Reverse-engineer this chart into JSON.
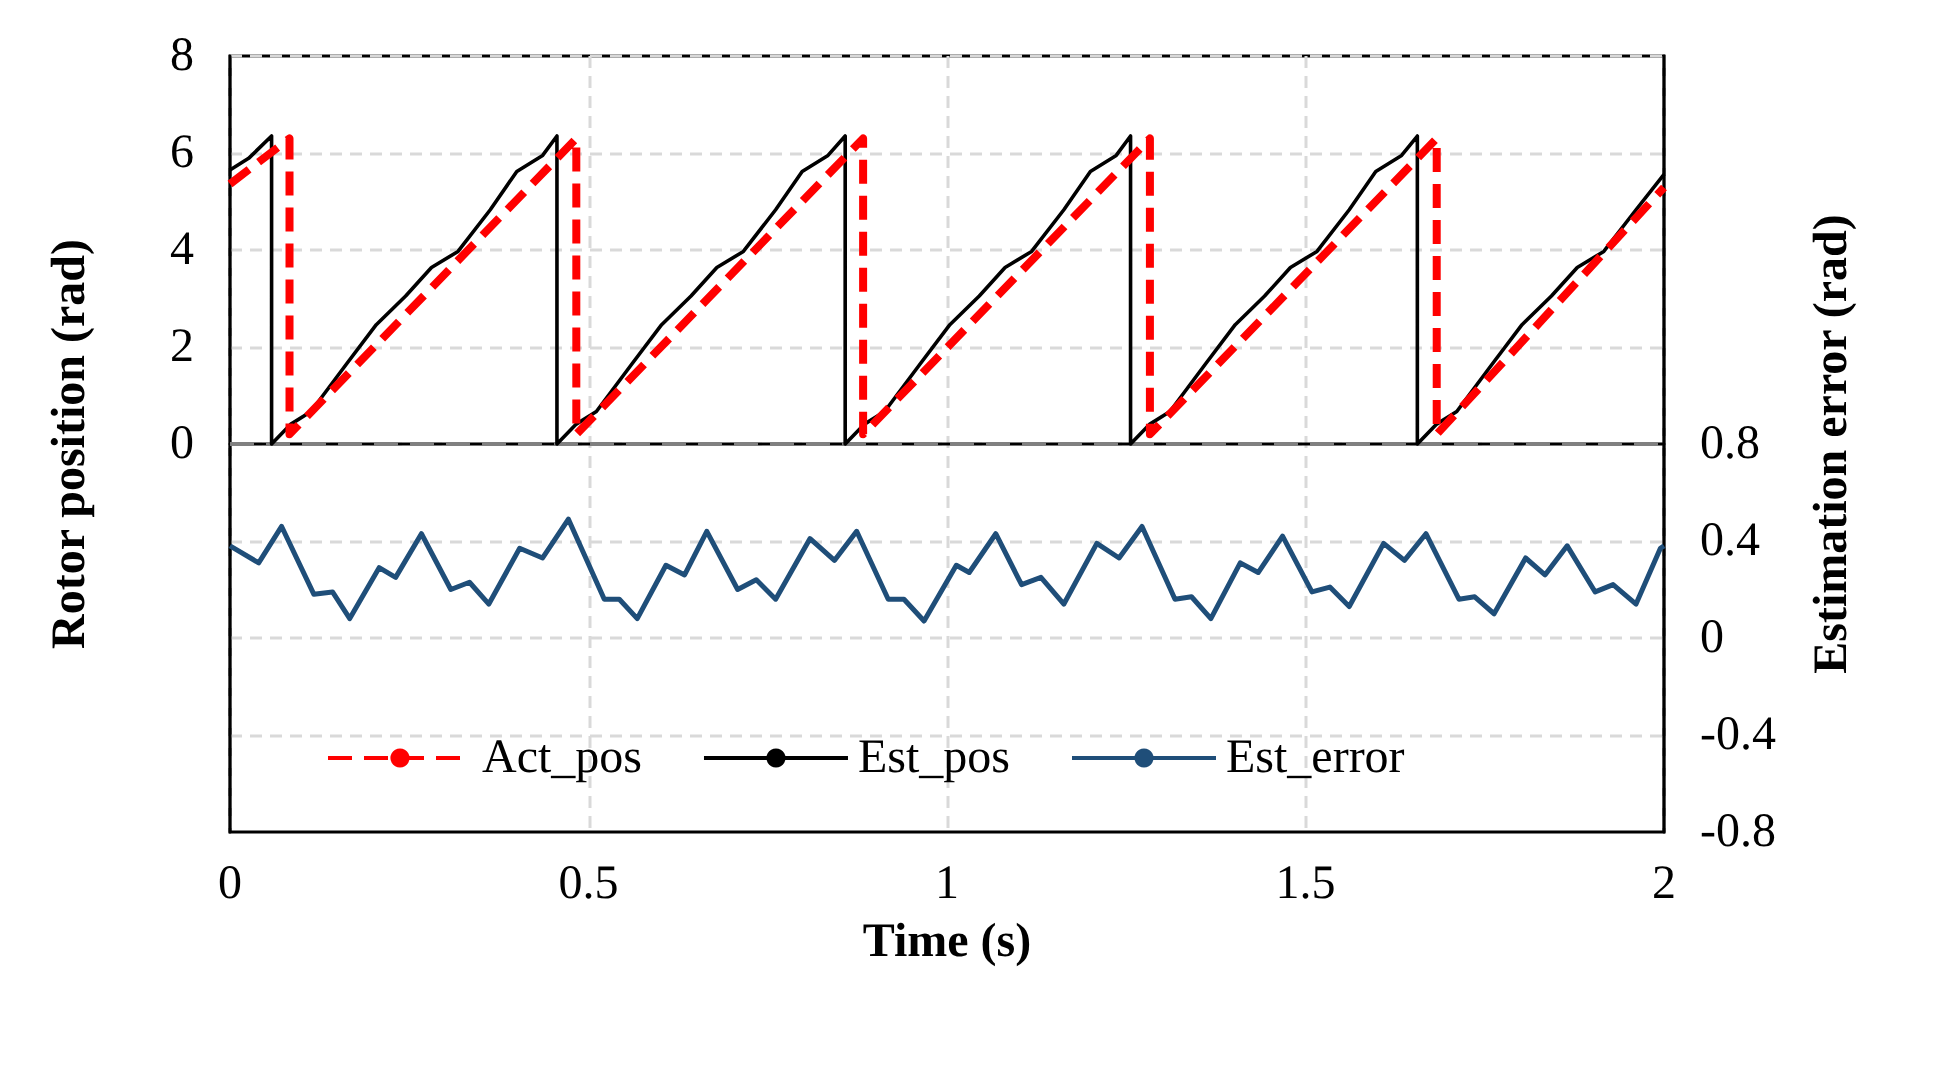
{
  "chart_data": {
    "type": "line",
    "xlabel": "Time (s)",
    "ylabel": "Rotor position (rad)",
    "y2label": "Estimation error (rad)",
    "xlim": [
      0,
      2
    ],
    "xticks": [
      0,
      0.5,
      1,
      1.5,
      2
    ],
    "ylim": [
      -8,
      8
    ],
    "yticks": [
      {
        "value": -6,
        "label": null
      },
      {
        "value": -4,
        "label": null
      },
      {
        "value": -2,
        "label": null
      },
      0,
      2,
      4,
      6,
      8
    ],
    "y2lim": [
      -0.8,
      2.4
    ],
    "y2ticks": [
      -0.8,
      -0.4,
      0,
      0.4,
      0.8
    ],
    "grid": true,
    "legend": "bottom",
    "marker": "none",
    "ref_lines": [
      {
        "axis": "y",
        "value": 0,
        "color": "#808080",
        "line_style": "dashed"
      }
    ],
    "series": [
      {
        "name": "Act_pos",
        "color": "#ff0000",
        "line_style": "dashed",
        "x": [
          0,
          0.083,
          0.083,
          0.483,
          0.483,
          0.883,
          0.883,
          1.283,
          1.283,
          1.683,
          1.683,
          2
        ],
        "values": [
          5.36,
          6.3,
          0.2,
          6.3,
          0.2,
          6.3,
          0.2,
          6.3,
          0.2,
          6.3,
          0.2,
          5.29
        ]
      },
      {
        "name": "Est_pos",
        "color": "#000000",
        "line_style": "solid",
        "x": [
          0,
          0.026,
          0.058,
          0.058,
          0.085,
          0.113,
          0.163,
          0.204,
          0.245,
          0.281,
          0.318,
          0.363,
          0.4,
          0.436,
          0.456,
          0.456,
          0.483,
          0.511,
          0.561,
          0.602,
          0.643,
          0.679,
          0.716,
          0.761,
          0.798,
          0.834,
          0.858,
          0.858,
          0.885,
          0.913,
          0.963,
          1.004,
          1.045,
          1.081,
          1.118,
          1.163,
          1.2,
          1.236,
          1.256,
          1.256,
          1.283,
          1.311,
          1.361,
          1.402,
          1.443,
          1.479,
          1.516,
          1.561,
          1.598,
          1.634,
          1.656,
          1.656,
          1.683,
          1.711,
          1.761,
          1.802,
          1.843,
          1.879,
          1.916,
          1.961,
          2
        ],
        "values": [
          5.65,
          5.89,
          6.35,
          0,
          0.41,
          0.67,
          1.66,
          2.46,
          3.05,
          3.64,
          3.97,
          4.83,
          5.62,
          5.95,
          6.35,
          0,
          0.41,
          0.67,
          1.66,
          2.46,
          3.05,
          3.64,
          3.97,
          4.83,
          5.62,
          5.95,
          6.35,
          0,
          0.41,
          0.67,
          1.66,
          2.46,
          3.05,
          3.64,
          3.97,
          4.83,
          5.62,
          5.95,
          6.35,
          0,
          0.41,
          0.67,
          1.66,
          2.46,
          3.05,
          3.64,
          3.97,
          4.83,
          5.62,
          5.95,
          6.35,
          0,
          0.41,
          0.67,
          1.66,
          2.46,
          3.05,
          3.64,
          3.97,
          4.83,
          5.56
        ]
      },
      {
        "name": "Est_error",
        "color": "#1f4e79",
        "line_style": "solid",
        "axis": "y2",
        "x": [
          0,
          0.04,
          0.072,
          0.117,
          0.143,
          0.167,
          0.208,
          0.231,
          0.267,
          0.308,
          0.334,
          0.361,
          0.404,
          0.436,
          0.472,
          0.522,
          0.543,
          0.568,
          0.608,
          0.634,
          0.665,
          0.708,
          0.734,
          0.761,
          0.809,
          0.843,
          0.874,
          0.918,
          0.94,
          0.968,
          1.013,
          1.031,
          1.068,
          1.104,
          1.131,
          1.163,
          1.209,
          1.24,
          1.272,
          1.318,
          1.341,
          1.368,
          1.409,
          1.434,
          1.468,
          1.509,
          1.534,
          1.561,
          1.609,
          1.638,
          1.668,
          1.714,
          1.736,
          1.763,
          1.807,
          1.834,
          1.865,
          1.904,
          1.929,
          1.961,
          1.995,
          2
        ],
        "values": [
          0.38,
          0.31,
          0.46,
          0.18,
          0.19,
          0.08,
          0.29,
          0.25,
          0.43,
          0.2,
          0.23,
          0.14,
          0.37,
          0.33,
          0.49,
          0.16,
          0.16,
          0.08,
          0.3,
          0.26,
          0.44,
          0.2,
          0.24,
          0.16,
          0.41,
          0.32,
          0.44,
          0.16,
          0.16,
          0.07,
          0.3,
          0.27,
          0.43,
          0.22,
          0.25,
          0.14,
          0.39,
          0.33,
          0.46,
          0.16,
          0.17,
          0.08,
          0.31,
          0.27,
          0.42,
          0.19,
          0.21,
          0.13,
          0.39,
          0.32,
          0.43,
          0.16,
          0.17,
          0.1,
          0.33,
          0.26,
          0.38,
          0.19,
          0.22,
          0.14,
          0.37,
          0.38
        ]
      }
    ]
  }
}
